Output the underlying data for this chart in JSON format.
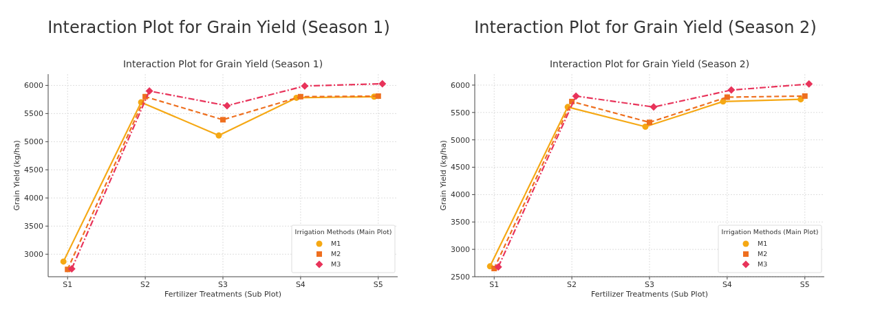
{
  "chart_data": [
    {
      "type": "line",
      "title": "Interaction Plot for Grain Yield (Season 1)",
      "subtitle": "Interaction Plot for Grain Yield (Season 1)",
      "xlabel": "Fertilizer Treatments (Sub Plot)",
      "ylabel": "Grain Yield (kg/ha)",
      "legend_title": "Irrigation Methods (Main Plot)",
      "categories": [
        "S1",
        "S2",
        "S3",
        "S4",
        "S5"
      ],
      "ylim": [
        2600,
        6200
      ],
      "yticks": [
        3000,
        3500,
        4000,
        4500,
        5000,
        5500,
        6000
      ],
      "grid": true,
      "legend": "bottom right",
      "series": [
        {
          "name": "M1",
          "color": "#f5a814",
          "marker": "circle",
          "line_style": "solid",
          "values": [
            2870,
            5700,
            5110,
            5780,
            5800
          ]
        },
        {
          "name": "M2",
          "color": "#ee6f1f",
          "marker": "square",
          "line_style": "dashed",
          "values": [
            2730,
            5800,
            5390,
            5800,
            5810
          ]
        },
        {
          "name": "M3",
          "color": "#e8335a",
          "marker": "diamond",
          "line_style": "dashdot",
          "values": [
            2740,
            5900,
            5640,
            5990,
            6030
          ]
        }
      ]
    },
    {
      "type": "line",
      "title": "Interaction Plot for Grain Yield (Season 2)",
      "subtitle": "Interaction Plot for Grain Yield (Season 2)",
      "xlabel": "Fertilizer Treatments (Sub Plot)",
      "ylabel": "Grain Yield (kg/ha)",
      "legend_title": "Irrigation Methods (Main Plot)",
      "categories": [
        "S1",
        "S2",
        "S3",
        "S4",
        "S5"
      ],
      "ylim": [
        2500,
        6200
      ],
      "yticks": [
        2500,
        3000,
        3500,
        4000,
        4500,
        5000,
        5500,
        6000
      ],
      "grid": true,
      "legend": "bottom right",
      "series": [
        {
          "name": "M1",
          "color": "#f5a814",
          "marker": "circle",
          "line_style": "solid",
          "values": [
            2690,
            5600,
            5240,
            5700,
            5740
          ]
        },
        {
          "name": "M2",
          "color": "#ee6f1f",
          "marker": "square",
          "line_style": "dashed",
          "values": [
            2650,
            5700,
            5320,
            5780,
            5800
          ]
        },
        {
          "name": "M3",
          "color": "#e8335a",
          "marker": "diamond",
          "line_style": "dashdot",
          "values": [
            2680,
            5800,
            5600,
            5910,
            6020
          ]
        }
      ]
    }
  ]
}
